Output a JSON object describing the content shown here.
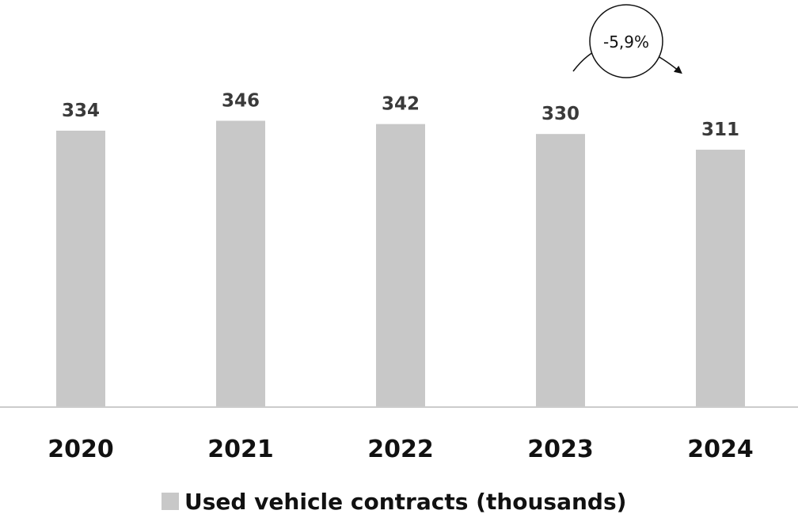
{
  "chart_data": {
    "type": "bar",
    "categories": [
      "2020",
      "2021",
      "2022",
      "2023",
      "2024"
    ],
    "series": [
      {
        "name": "Used vehicle contracts (thousands)",
        "values": [
          334,
          346,
          342,
          330,
          311
        ],
        "color": "#c8c8c8"
      }
    ],
    "data_labels": [
      "334",
      "346",
      "342",
      "330",
      "311"
    ],
    "annotation": {
      "text": "-5,9%",
      "from_category": "2023",
      "to_category": "2024"
    },
    "legend": {
      "position": "bottom-center",
      "label": "Used vehicle contracts (thousands)"
    },
    "axis_color": "#cccccc",
    "grid": false
  }
}
